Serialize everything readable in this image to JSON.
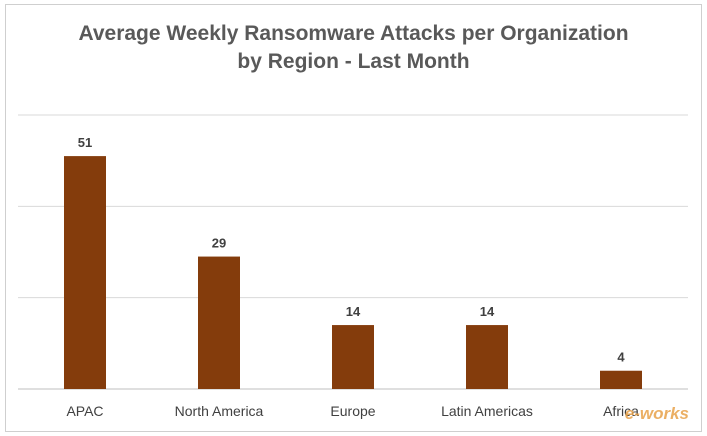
{
  "chart_data": {
    "type": "bar",
    "title": "Average Weekly Ransomware Attacks per Organization",
    "subtitle": "by Region - Last Month",
    "categories": [
      "APAC",
      "North America",
      "Europe",
      "Latin Americas",
      "Africa"
    ],
    "values": [
      51,
      29,
      14,
      14,
      4
    ],
    "ylim": [
      0,
      60
    ],
    "grid": true,
    "bar_color": "#843c0c",
    "gridline_color": "#d9d9d9"
  },
  "watermark": "e-works"
}
